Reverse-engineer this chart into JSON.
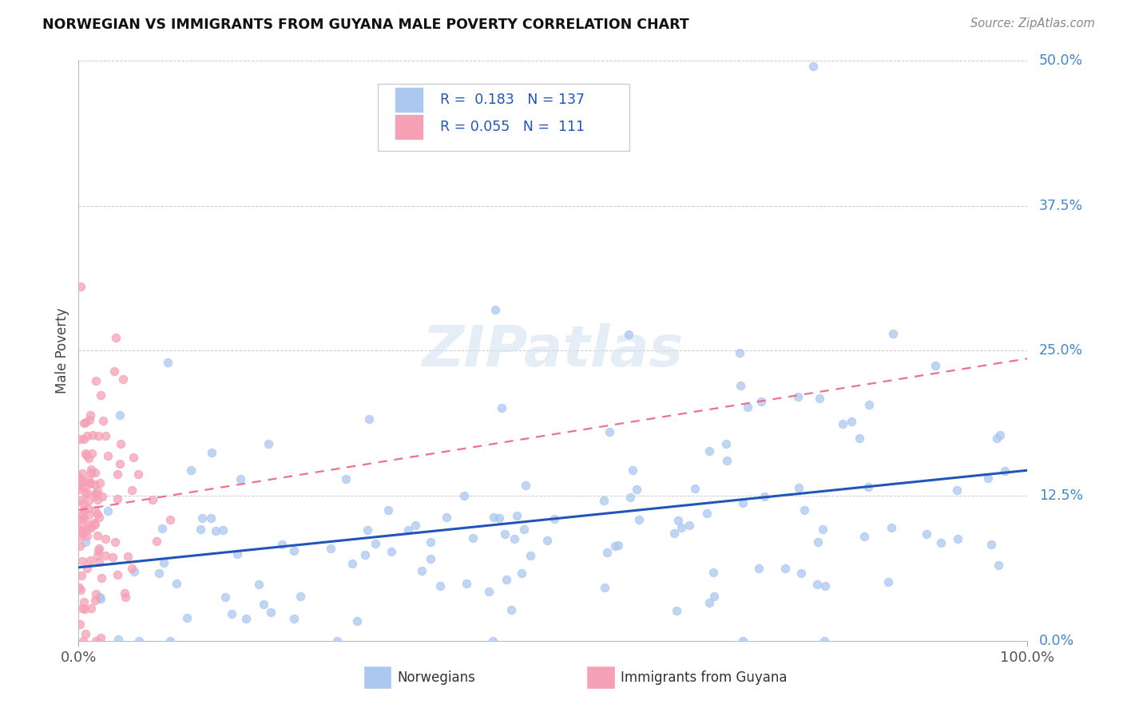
{
  "title": "NORWEGIAN VS IMMIGRANTS FROM GUYANA MALE POVERTY CORRELATION CHART",
  "source": "Source: ZipAtlas.com",
  "ylabel": "Male Poverty",
  "xlim": [
    0.0,
    1.0
  ],
  "ylim": [
    0.0,
    0.5
  ],
  "yticks": [
    0.0,
    0.125,
    0.25,
    0.375,
    0.5
  ],
  "ytick_labels": [
    "0.0%",
    "12.5%",
    "25.0%",
    "37.5%",
    "50.0%"
  ],
  "xtick_labels": [
    "0.0%",
    "100.0%"
  ],
  "grid_color": "#cccccc",
  "background_color": "#ffffff",
  "norwegians_color": "#aac8f0",
  "immigrants_color": "#f5a0b5",
  "norwegians_line_color": "#2255bb",
  "immigrants_line_color": "#ee7090",
  "R_norwegian": 0.183,
  "N_norwegian": 137,
  "R_immigrant": 0.055,
  "N_immigrant": 111,
  "legend_label_1": "Norwegians",
  "legend_label_2": "Immigrants from Guyana"
}
